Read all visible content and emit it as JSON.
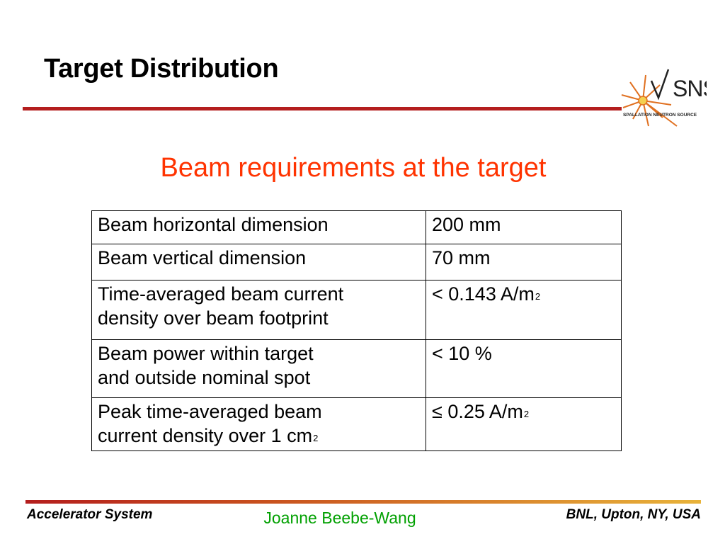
{
  "slide": {
    "title": "Target Distribution",
    "subtitle": "Beam requirements at the target"
  },
  "logo": {
    "text": "SNS",
    "caption": "SPALLATION NEUTRON SOURCE"
  },
  "table": {
    "rows": [
      {
        "param_lines": [
          "Beam horizontal dimension"
        ],
        "value": "200 mm",
        "value_sup": "",
        "param_sup": ""
      },
      {
        "param_lines": [
          "Beam vertical dimension"
        ],
        "value": "70 mm",
        "value_sup": "",
        "param_sup": ""
      },
      {
        "param_lines": [
          "Time-averaged beam current",
          "density over beam footprint"
        ],
        "value": "< 0.143 A/m",
        "value_sup": "2",
        "param_sup": ""
      },
      {
        "param_lines": [
          "Beam power within target",
          "and outside nominal spot"
        ],
        "value": "< 10 %",
        "value_sup": "",
        "param_sup": ""
      },
      {
        "param_lines": [
          "Peak time-averaged beam",
          "current density over 1 cm"
        ],
        "value": "≤ 0.25 A/m",
        "value_sup": "2",
        "param_sup": "2"
      }
    ]
  },
  "footer": {
    "left": "Accelerator System",
    "center": "Joanne Beebe-Wang",
    "right": "BNL, Upton, NY, USA"
  },
  "colors": {
    "title_rule": "#b41e1e",
    "subtitle": "#ff3300",
    "footer_center": "#00a000",
    "logo_star": "#e07020"
  }
}
